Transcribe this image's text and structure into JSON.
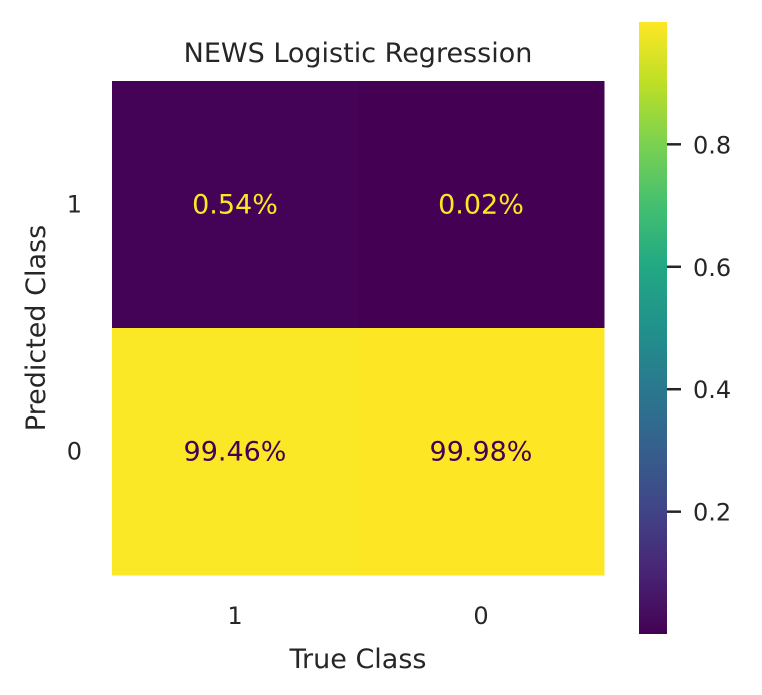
{
  "chart_data": {
    "type": "heatmap",
    "title": "NEWS Logistic Regression",
    "xlabel": "True Class",
    "ylabel": "Predicted Class",
    "x_categories": [
      "1",
      "0"
    ],
    "y_categories": [
      "1",
      "0"
    ],
    "values": [
      [
        0.0054,
        0.0002
      ],
      [
        0.9946,
        0.9998
      ]
    ],
    "cell_labels": [
      [
        "0.54%",
        "0.02%"
      ],
      [
        "99.46%",
        "99.98%"
      ]
    ],
    "colormap": "viridis",
    "colorbar": {
      "range": [
        0.0002,
        0.9998
      ],
      "ticks": [
        0.2,
        0.4,
        0.6,
        0.8
      ],
      "tick_labels": [
        "0.2",
        "0.4",
        "0.6",
        "0.8"
      ]
    },
    "grid": false,
    "colors": {
      "low": "#440154",
      "high": "#fde725",
      "text_on_dark": "#fde725",
      "text_on_light": "#440154"
    }
  }
}
